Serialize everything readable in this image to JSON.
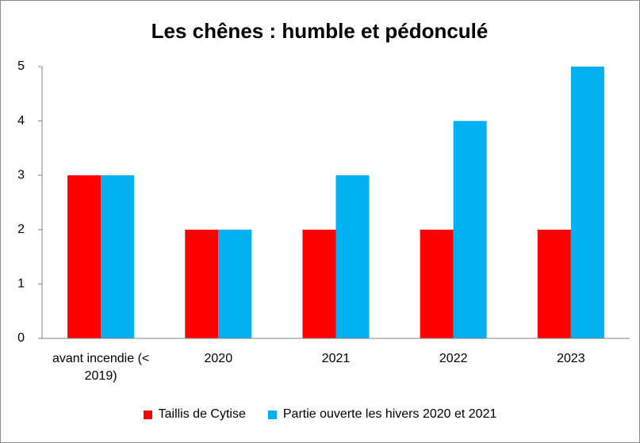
{
  "chart_data": {
    "type": "bar",
    "title": "Les chênes : humble et pédonculé",
    "categories": [
      "avant incendie (< 2019)",
      "2020",
      "2021",
      "2022",
      "2023"
    ],
    "series": [
      {
        "name": "Taillis de Cytise",
        "color": "#ff0000",
        "values": [
          3,
          2,
          2,
          2,
          2
        ]
      },
      {
        "name": "Partie ouverte les hivers 2020 et 2021",
        "color": "#00b0f0",
        "values": [
          3,
          2,
          3,
          4,
          5
        ]
      }
    ],
    "ylim": [
      0,
      5
    ],
    "yticks": [
      0,
      1,
      2,
      3,
      4,
      5
    ],
    "grid": false,
    "legend": "bottom"
  }
}
